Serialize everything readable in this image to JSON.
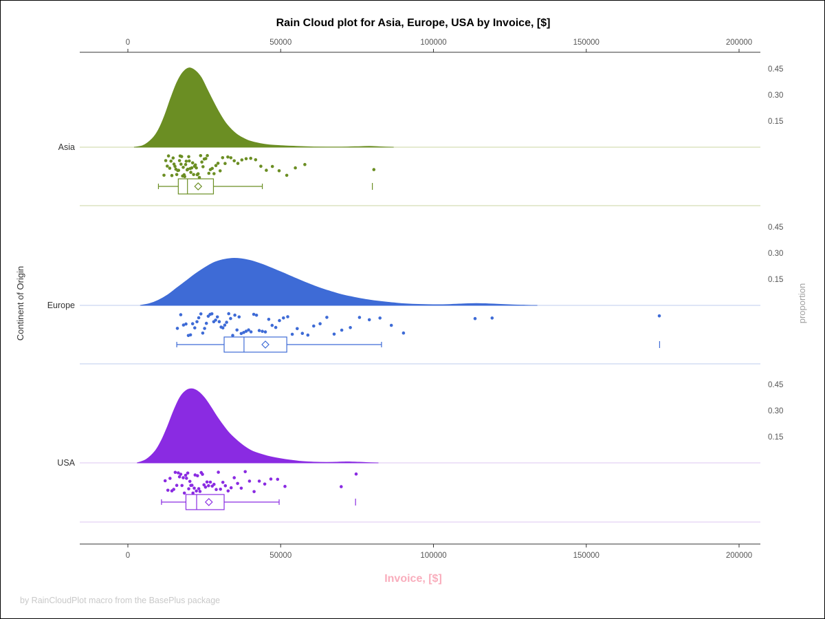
{
  "footer": "by RainCloudPlot macro from the BasePlus package",
  "styles": {
    "xlabel_color": "#F9ADBC",
    "axis_color": "#333333",
    "tick_color": "#555555",
    "footer_color": "#C9C9C9"
  },
  "chart_data": {
    "type": "raincloud",
    "title": "Rain Cloud plot for Asia, Europe, USA by Invoice, [$]",
    "x_axis": {
      "label": "Invoice, [$]",
      "lim": [
        0,
        200000
      ],
      "ticks": [
        0,
        50000,
        100000,
        150000,
        200000
      ],
      "tick_labels": [
        "0",
        "50000",
        "100000",
        "150000",
        "200000"
      ]
    },
    "y_axis": {
      "label": "Continent of Origin",
      "categories": [
        "Asia",
        "Europe",
        "USA"
      ]
    },
    "y2_axis": {
      "label": "proportion",
      "ticks": [
        0.15,
        0.3,
        0.45
      ]
    },
    "groups": [
      {
        "name": "Asia",
        "color": "#6B8E23",
        "light_color": "#CBD6A2",
        "density": [
          [
            2000,
            0
          ],
          [
            5000,
            0.01
          ],
          [
            8000,
            0.05
          ],
          [
            10000,
            0.1
          ],
          [
            12000,
            0.18
          ],
          [
            14000,
            0.28
          ],
          [
            16000,
            0.37
          ],
          [
            18000,
            0.43
          ],
          [
            20000,
            0.455
          ],
          [
            22000,
            0.44
          ],
          [
            24000,
            0.4
          ],
          [
            26000,
            0.33
          ],
          [
            28000,
            0.26
          ],
          [
            30000,
            0.195
          ],
          [
            32000,
            0.14
          ],
          [
            34000,
            0.1
          ],
          [
            36000,
            0.07
          ],
          [
            38000,
            0.05
          ],
          [
            40000,
            0.035
          ],
          [
            43000,
            0.022
          ],
          [
            46000,
            0.014
          ],
          [
            50000,
            0.009
          ],
          [
            55000,
            0.005
          ],
          [
            60000,
            0.002
          ],
          [
            65000,
            0.001
          ],
          [
            70000,
            0.001
          ],
          [
            75000,
            0.003
          ],
          [
            79000,
            0.005
          ],
          [
            83000,
            0.002
          ],
          [
            87000,
            0
          ]
        ],
        "rain": [
          11800,
          12400,
          12900,
          13300,
          13700,
          14100,
          14400,
          14800,
          15100,
          15400,
          15700,
          16000,
          16300,
          16600,
          16900,
          17100,
          17400,
          17600,
          17900,
          18100,
          18400,
          18600,
          18900,
          19100,
          19400,
          19600,
          19900,
          20100,
          20400,
          20600,
          20900,
          21200,
          21500,
          21800,
          22100,
          22400,
          22700,
          23000,
          23400,
          23800,
          24200,
          24600,
          25000,
          25500,
          26000,
          26500,
          27000,
          27600,
          28200,
          28800,
          29500,
          30200,
          31000,
          31800,
          32700,
          33700,
          34800,
          36000,
          37300,
          38700,
          40200,
          41800,
          43500,
          45300,
          47300,
          49500,
          52000,
          54800,
          57900,
          80500
        ],
        "box": {
          "whisker_low": 10000,
          "q1": 16500,
          "median": 19500,
          "q3": 28000,
          "whisker_high": 44000,
          "mean": 23000,
          "outliers": [
            80000
          ]
        }
      },
      {
        "name": "Europe",
        "color": "#3E6BD6",
        "light_color": "#BCCBEE",
        "density": [
          [
            4000,
            0
          ],
          [
            7000,
            0.01
          ],
          [
            10000,
            0.03
          ],
          [
            13000,
            0.06
          ],
          [
            16000,
            0.1
          ],
          [
            19000,
            0.14
          ],
          [
            22000,
            0.18
          ],
          [
            25000,
            0.215
          ],
          [
            28000,
            0.245
          ],
          [
            31000,
            0.262
          ],
          [
            34000,
            0.27
          ],
          [
            37000,
            0.268
          ],
          [
            40000,
            0.258
          ],
          [
            43000,
            0.242
          ],
          [
            46000,
            0.222
          ],
          [
            49000,
            0.2
          ],
          [
            52000,
            0.178
          ],
          [
            55000,
            0.155
          ],
          [
            58000,
            0.133
          ],
          [
            61000,
            0.112
          ],
          [
            64000,
            0.093
          ],
          [
            67000,
            0.077
          ],
          [
            70000,
            0.062
          ],
          [
            73000,
            0.05
          ],
          [
            76000,
            0.04
          ],
          [
            79000,
            0.031
          ],
          [
            82000,
            0.024
          ],
          [
            85000,
            0.018
          ],
          [
            88000,
            0.013
          ],
          [
            91000,
            0.009
          ],
          [
            95000,
            0.006
          ],
          [
            100000,
            0.004
          ],
          [
            105000,
            0.005
          ],
          [
            110000,
            0.009
          ],
          [
            114000,
            0.011
          ],
          [
            118000,
            0.009
          ],
          [
            122000,
            0.006
          ],
          [
            126000,
            0.003
          ],
          [
            130000,
            0.001
          ],
          [
            134000,
            0
          ]
        ],
        "rain": [
          16200,
          17300,
          18200,
          19000,
          19800,
          20500,
          21200,
          21900,
          22600,
          23200,
          23900,
          24500,
          25100,
          25700,
          26300,
          26900,
          27500,
          28100,
          28700,
          29300,
          29900,
          30500,
          31100,
          31700,
          32300,
          33000,
          33600,
          34300,
          35000,
          35700,
          36400,
          37100,
          37900,
          38700,
          39500,
          40300,
          41200,
          42100,
          43000,
          44000,
          45000,
          46100,
          47200,
          48400,
          49600,
          50900,
          52300,
          53800,
          55400,
          57100,
          58900,
          60800,
          62900,
          65100,
          67500,
          70000,
          72800,
          75800,
          79000,
          82500,
          86200,
          90200,
          113600,
          119200,
          173900
        ],
        "box": {
          "whisker_low": 16000,
          "q1": 31500,
          "median": 38000,
          "q3": 52000,
          "whisker_high": 83000,
          "mean": 45000,
          "outliers": [
            174000
          ]
        }
      },
      {
        "name": "USA",
        "color": "#8A2BE2",
        "light_color": "#DDC4F0",
        "density": [
          [
            3000,
            0
          ],
          [
            6000,
            0.02
          ],
          [
            9000,
            0.07
          ],
          [
            11000,
            0.13
          ],
          [
            13000,
            0.21
          ],
          [
            15000,
            0.3
          ],
          [
            17000,
            0.375
          ],
          [
            19000,
            0.415
          ],
          [
            21000,
            0.425
          ],
          [
            23000,
            0.41
          ],
          [
            25000,
            0.375
          ],
          [
            27000,
            0.325
          ],
          [
            29000,
            0.27
          ],
          [
            31000,
            0.22
          ],
          [
            33000,
            0.175
          ],
          [
            35000,
            0.14
          ],
          [
            37000,
            0.11
          ],
          [
            39000,
            0.085
          ],
          [
            41000,
            0.066
          ],
          [
            44000,
            0.048
          ],
          [
            47000,
            0.034
          ],
          [
            50000,
            0.024
          ],
          [
            53000,
            0.016
          ],
          [
            56000,
            0.01
          ],
          [
            59000,
            0.006
          ],
          [
            62000,
            0.004
          ],
          [
            65000,
            0.003
          ],
          [
            68000,
            0.004
          ],
          [
            71000,
            0.006
          ],
          [
            74000,
            0.005
          ],
          [
            78000,
            0.002
          ],
          [
            82000,
            0
          ]
        ],
        "rain": [
          12200,
          13100,
          13800,
          14400,
          15000,
          15500,
          16000,
          16500,
          16900,
          17300,
          17700,
          18100,
          18500,
          18900,
          19200,
          19600,
          19900,
          20300,
          20600,
          21000,
          21300,
          21700,
          22000,
          22400,
          22800,
          23200,
          23600,
          24000,
          24400,
          24900,
          25400,
          25900,
          26400,
          27000,
          27600,
          28200,
          28900,
          29600,
          30300,
          31100,
          31900,
          32800,
          33800,
          34800,
          35900,
          37100,
          38400,
          39800,
          41300,
          43000,
          44800,
          46800,
          49000,
          51400,
          69800,
          74700
        ],
        "box": {
          "whisker_low": 11000,
          "q1": 19000,
          "median": 22500,
          "q3": 31500,
          "whisker_high": 49500,
          "mean": 26500,
          "outliers": [
            74500
          ]
        }
      }
    ]
  }
}
